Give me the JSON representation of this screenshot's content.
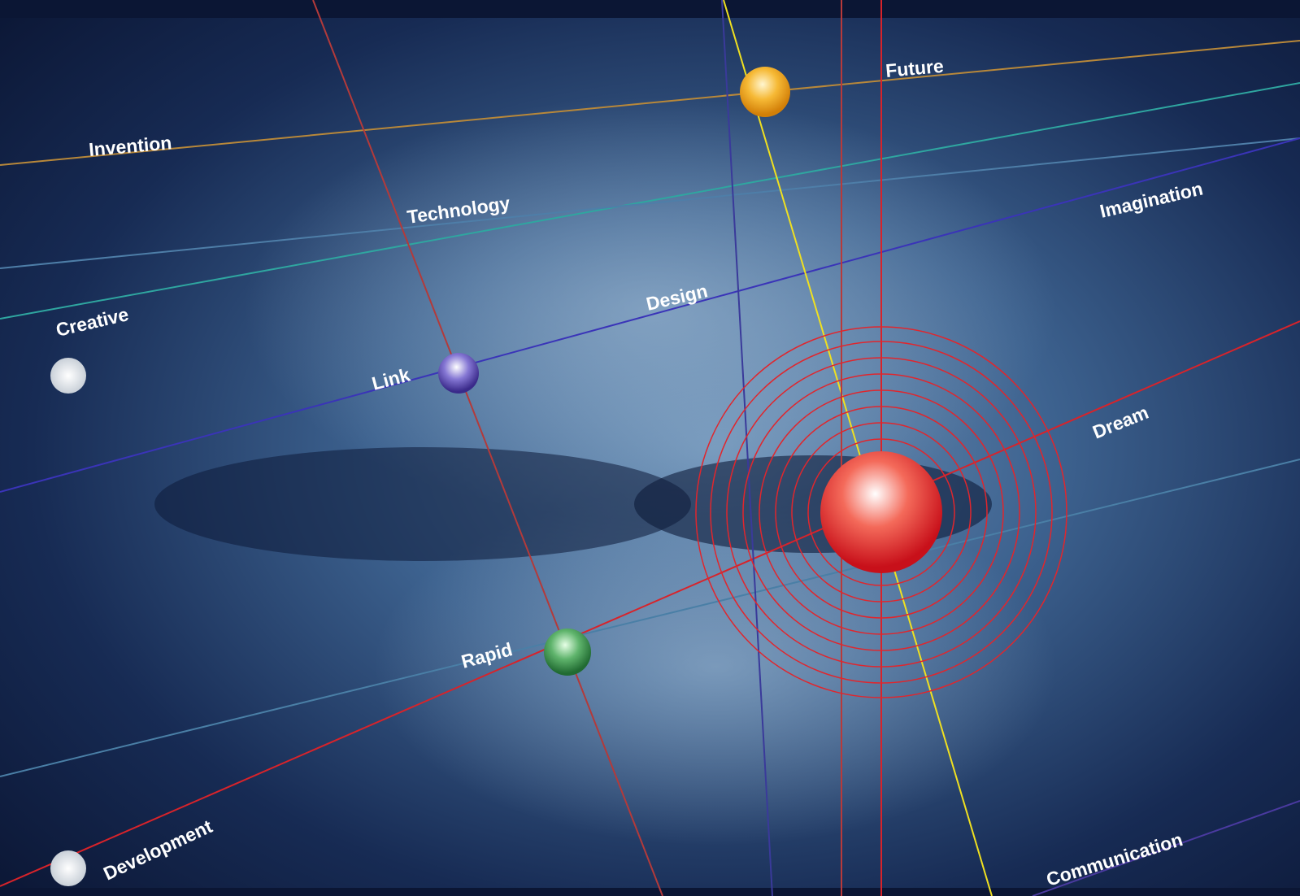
{
  "words": [
    "Invention",
    "Future",
    "Technology",
    "Imagination",
    "Design",
    "Creative",
    "Link",
    "Dream",
    "Rapid",
    "Development",
    "Communication"
  ]
}
